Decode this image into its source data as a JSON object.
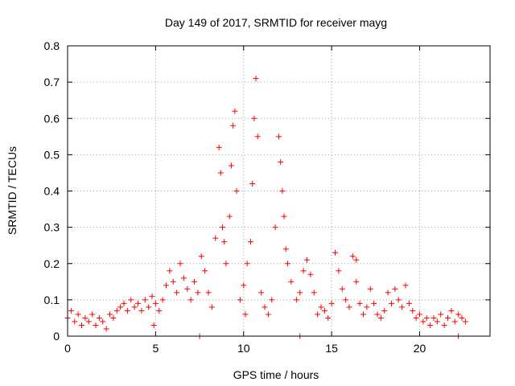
{
  "chart_data": {
    "type": "scatter",
    "title": "Day 149 of 2017, SRMTID for receiver mayg",
    "xlabel": "GPS time / hours",
    "ylabel": "SRMTID / TECUs",
    "xlim": [
      0,
      24
    ],
    "ylim": [
      0,
      0.8
    ],
    "xticks": [
      0,
      5,
      10,
      15,
      20
    ],
    "yticks": [
      0,
      0.1,
      0.2,
      0.3,
      0.4,
      0.5,
      0.6,
      0.7,
      0.8
    ],
    "xtick_labels": [
      "0",
      "5",
      "10",
      "15",
      "20"
    ],
    "ytick_labels": [
      "0",
      "0.1",
      "0.2",
      "0.3",
      "0.4",
      "0.5",
      "0.6",
      "0.7",
      "0.8"
    ],
    "grid": true,
    "marker": "+",
    "color": "#ff0000",
    "series": [
      {
        "name": "SRMTID",
        "points": [
          [
            0.0,
            0.05
          ],
          [
            0.2,
            0.07
          ],
          [
            0.4,
            0.04
          ],
          [
            0.6,
            0.06
          ],
          [
            0.8,
            0.03
          ],
          [
            1.0,
            0.05
          ],
          [
            1.2,
            0.04
          ],
          [
            1.4,
            0.06
          ],
          [
            1.6,
            0.03
          ],
          [
            1.8,
            0.05
          ],
          [
            2.0,
            0.04
          ],
          [
            2.2,
            0.02
          ],
          [
            2.4,
            0.06
          ],
          [
            2.6,
            0.05
          ],
          [
            2.8,
            0.07
          ],
          [
            3.0,
            0.08
          ],
          [
            3.2,
            0.09
          ],
          [
            3.4,
            0.07
          ],
          [
            3.6,
            0.1
          ],
          [
            3.8,
            0.08
          ],
          [
            4.0,
            0.09
          ],
          [
            4.2,
            0.07
          ],
          [
            4.4,
            0.1
          ],
          [
            4.6,
            0.08
          ],
          [
            4.8,
            0.11
          ],
          [
            5.0,
            0.09
          ],
          [
            5.2,
            0.07
          ],
          [
            5.4,
            0.1
          ],
          [
            5.6,
            0.14
          ],
          [
            5.8,
            0.18
          ],
          [
            6.0,
            0.15
          ],
          [
            6.2,
            0.12
          ],
          [
            6.4,
            0.2
          ],
          [
            6.6,
            0.16
          ],
          [
            6.8,
            0.13
          ],
          [
            7.0,
            0.1
          ],
          [
            7.2,
            0.15
          ],
          [
            7.4,
            0.12
          ],
          [
            7.6,
            0.22
          ],
          [
            7.8,
            0.18
          ],
          [
            8.0,
            0.12
          ],
          [
            8.2,
            0.08
          ],
          [
            8.4,
            0.27
          ],
          [
            8.6,
            0.52
          ],
          [
            8.7,
            0.45
          ],
          [
            8.8,
            0.3
          ],
          [
            9.0,
            0.2
          ],
          [
            9.2,
            0.33
          ],
          [
            9.3,
            0.47
          ],
          [
            9.4,
            0.58
          ],
          [
            9.5,
            0.62
          ],
          [
            9.6,
            0.4
          ],
          [
            9.8,
            0.1
          ],
          [
            10.0,
            0.14
          ],
          [
            10.2,
            0.2
          ],
          [
            10.4,
            0.26
          ],
          [
            10.5,
            0.42
          ],
          [
            10.6,
            0.6
          ],
          [
            10.7,
            0.71
          ],
          [
            10.8,
            0.55
          ],
          [
            11.0,
            0.12
          ],
          [
            11.2,
            0.08
          ],
          [
            11.4,
            0.06
          ],
          [
            11.6,
            0.1
          ],
          [
            11.8,
            0.3
          ],
          [
            12.0,
            0.55
          ],
          [
            12.1,
            0.48
          ],
          [
            12.2,
            0.4
          ],
          [
            12.3,
            0.33
          ],
          [
            12.5,
            0.2
          ],
          [
            12.7,
            0.15
          ],
          [
            13.0,
            0.1
          ],
          [
            13.2,
            0.12
          ],
          [
            13.4,
            0.18
          ],
          [
            13.6,
            0.21
          ],
          [
            13.8,
            0.17
          ],
          [
            14.0,
            0.12
          ],
          [
            14.2,
            0.06
          ],
          [
            14.4,
            0.08
          ],
          [
            14.6,
            0.07
          ],
          [
            14.8,
            0.05
          ],
          [
            15.0,
            0.09
          ],
          [
            15.2,
            0.23
          ],
          [
            15.4,
            0.18
          ],
          [
            15.6,
            0.13
          ],
          [
            15.8,
            0.1
          ],
          [
            16.0,
            0.08
          ],
          [
            16.2,
            0.22
          ],
          [
            16.4,
            0.15
          ],
          [
            16.6,
            0.09
          ],
          [
            16.8,
            0.06
          ],
          [
            17.0,
            0.08
          ],
          [
            17.2,
            0.13
          ],
          [
            17.4,
            0.09
          ],
          [
            17.6,
            0.06
          ],
          [
            17.8,
            0.05
          ],
          [
            18.0,
            0.07
          ],
          [
            18.2,
            0.12
          ],
          [
            18.4,
            0.09
          ],
          [
            18.6,
            0.13
          ],
          [
            18.8,
            0.1
          ],
          [
            19.0,
            0.08
          ],
          [
            19.2,
            0.14
          ],
          [
            19.4,
            0.09
          ],
          [
            19.6,
            0.07
          ],
          [
            19.8,
            0.05
          ],
          [
            20.0,
            0.06
          ],
          [
            20.2,
            0.04
          ],
          [
            20.4,
            0.05
          ],
          [
            20.6,
            0.03
          ],
          [
            20.8,
            0.05
          ],
          [
            21.0,
            0.04
          ],
          [
            21.2,
            0.06
          ],
          [
            21.4,
            0.03
          ],
          [
            21.6,
            0.05
          ],
          [
            21.8,
            0.07
          ],
          [
            22.0,
            0.04
          ],
          [
            22.2,
            0.06
          ],
          [
            22.4,
            0.05
          ],
          [
            22.6,
            0.04
          ],
          [
            7.5,
            0.0
          ],
          [
            13.2,
            0.0
          ],
          [
            22.2,
            0.0
          ],
          [
            4.9,
            0.03
          ],
          [
            8.9,
            0.26
          ],
          [
            10.1,
            0.06
          ],
          [
            12.4,
            0.24
          ],
          [
            16.4,
            0.21
          ]
        ]
      }
    ]
  }
}
